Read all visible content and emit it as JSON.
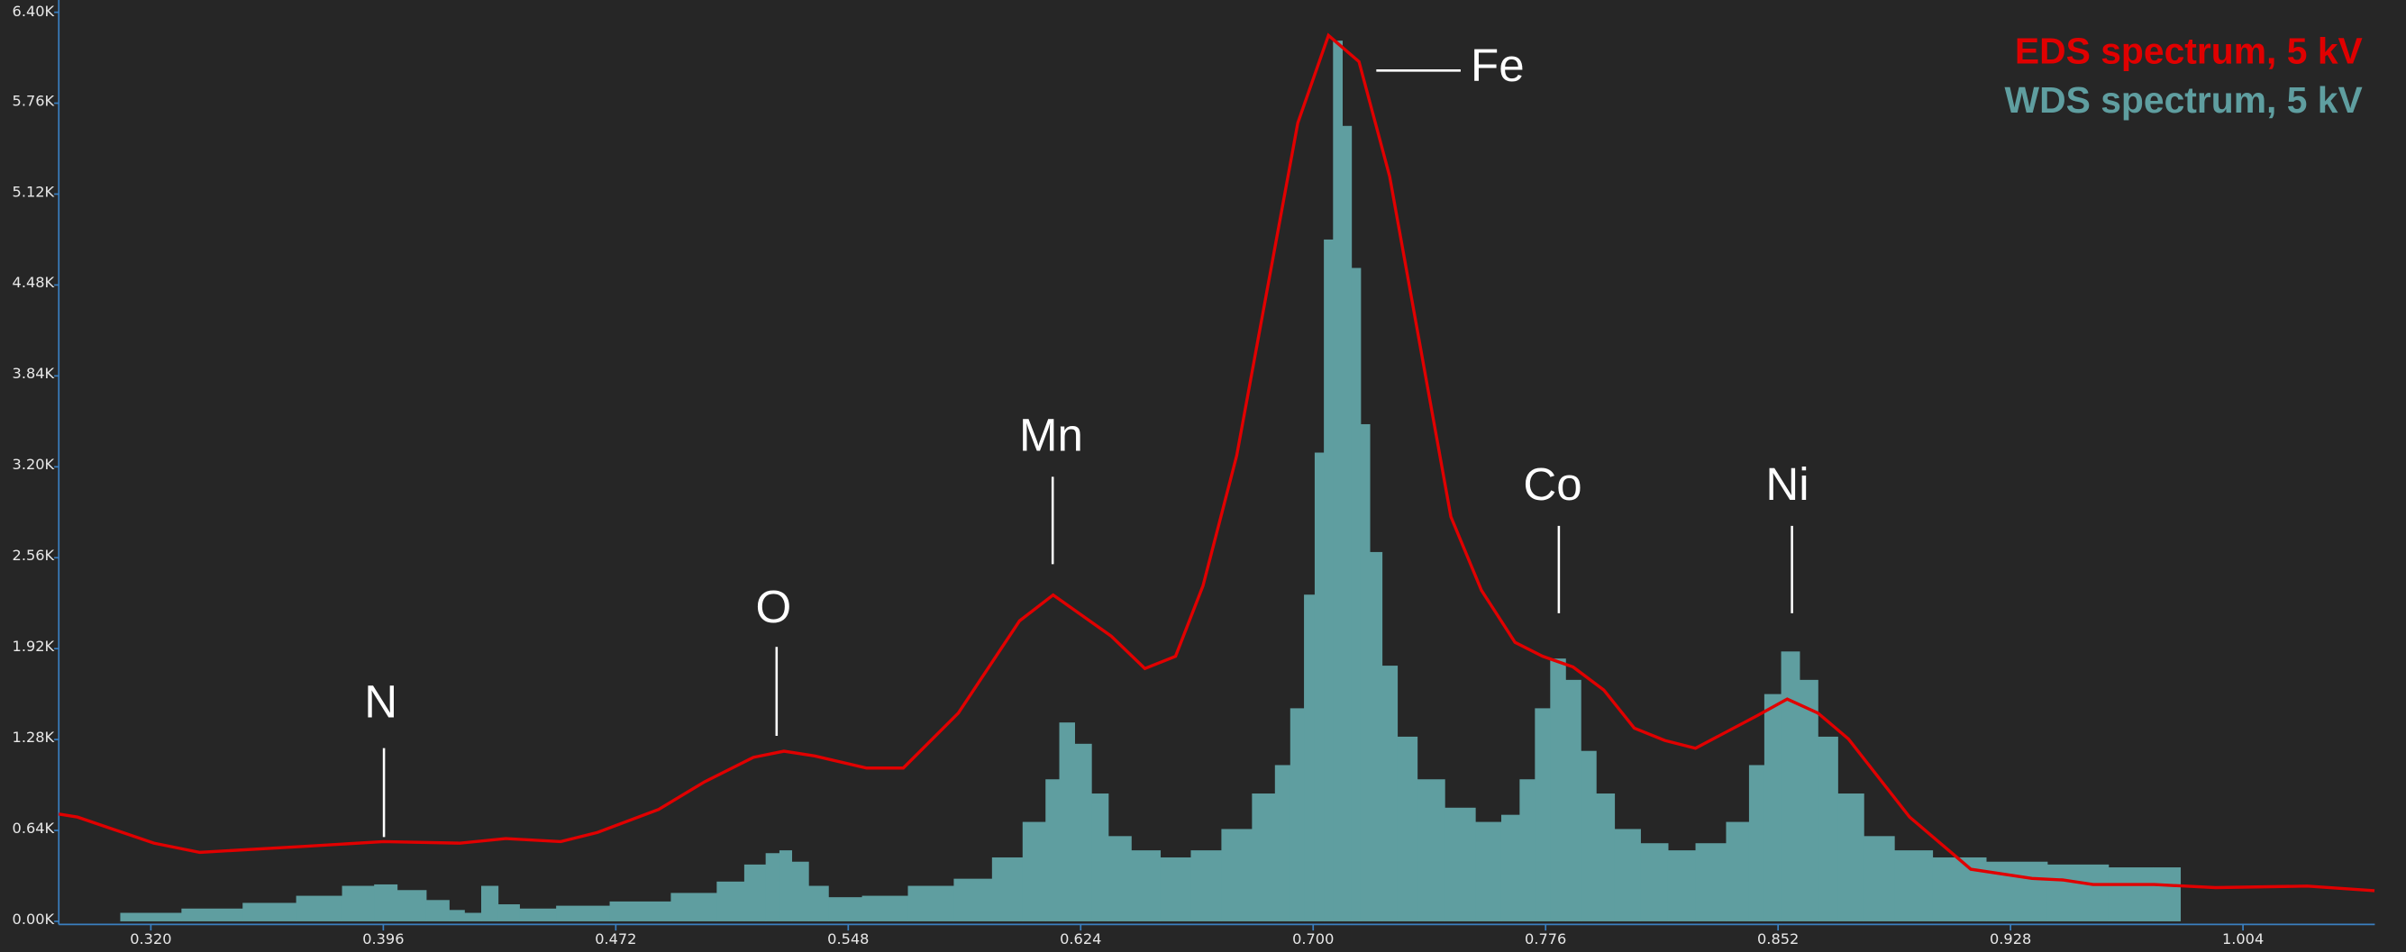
{
  "chart_data": {
    "type": "spectrum",
    "series": [
      {
        "name": "EDS spectrum, 5 kV",
        "color": "#e00000",
        "style": "line",
        "x": [
          0.2899,
          0.296,
          0.321,
          0.336,
          0.371,
          0.396,
          0.421,
          0.436,
          0.454,
          0.466,
          0.486,
          0.501,
          0.517,
          0.527,
          0.537,
          0.554,
          0.566,
          0.584,
          0.604,
          0.615,
          0.634,
          0.645,
          0.655,
          0.664,
          0.675,
          0.695,
          0.705,
          0.715,
          0.725,
          0.745,
          0.755,
          0.766,
          0.775,
          0.785,
          0.795,
          0.805,
          0.815,
          0.825,
          0.845,
          0.855,
          0.865,
          0.875,
          0.895,
          0.915,
          0.935,
          0.945,
          0.955,
          0.975,
          0.995,
          1.025,
          1.047
        ],
        "values": [
          755,
          734,
          550,
          486,
          529,
          561,
          550,
          583,
          561,
          626,
          788,
          982,
          1155,
          1198,
          1165,
          1079,
          1079,
          1467,
          2115,
          2298,
          2007,
          1780,
          1866,
          2363,
          3280,
          5621,
          6237,
          6053,
          5244,
          2849,
          2331,
          1964,
          1866,
          1791,
          1629,
          1360,
          1273,
          1219,
          1446,
          1565,
          1467,
          1284,
          734,
          367,
          302,
          291,
          259,
          259,
          237,
          248,
          216
        ]
      },
      {
        "name": "WDS spectrum, 5 kV",
        "color": "#5f9ea0",
        "style": "bars",
        "x": [
          0.32,
          0.34,
          0.36,
          0.375,
          0.39,
          0.396,
          0.405,
          0.415,
          0.42,
          0.425,
          0.431,
          0.436,
          0.445,
          0.46,
          0.48,
          0.5,
          0.51,
          0.518,
          0.524,
          0.527,
          0.532,
          0.538,
          0.545,
          0.56,
          0.575,
          0.59,
          0.6,
          0.61,
          0.615,
          0.619,
          0.625,
          0.63,
          0.636,
          0.645,
          0.655,
          0.665,
          0.675,
          0.685,
          0.69,
          0.695,
          0.699,
          0.702,
          0.705,
          0.708,
          0.711,
          0.714,
          0.717,
          0.72,
          0.725,
          0.73,
          0.738,
          0.748,
          0.758,
          0.765,
          0.77,
          0.775,
          0.78,
          0.785,
          0.79,
          0.795,
          0.802,
          0.812,
          0.82,
          0.83,
          0.84,
          0.845,
          0.85,
          0.856,
          0.862,
          0.868,
          0.875,
          0.885,
          0.895,
          0.91,
          0.93,
          0.95,
          0.97,
          0.979
        ],
        "values": [
          60,
          90,
          130,
          180,
          250,
          260,
          220,
          150,
          80,
          60,
          250,
          120,
          90,
          110,
          140,
          200,
          280,
          400,
          480,
          500,
          420,
          250,
          170,
          180,
          250,
          300,
          450,
          700,
          1000,
          1400,
          1250,
          900,
          600,
          500,
          450,
          500,
          650,
          900,
          1100,
          1500,
          2300,
          3300,
          4800,
          6200,
          5600,
          4600,
          3500,
          2600,
          1800,
          1300,
          1000,
          800,
          700,
          750,
          1000,
          1500,
          1850,
          1700,
          1200,
          900,
          650,
          550,
          500,
          550,
          700,
          1100,
          1600,
          1900,
          1700,
          1300,
          900,
          600,
          500,
          450,
          420,
          400,
          380,
          380
        ]
      }
    ],
    "annotations": [
      "N",
      "O",
      "Mn",
      "Fe",
      "Co",
      "Ni"
    ],
    "xlim": [
      0.2899,
      1.0471
    ],
    "xticks": [
      {
        "value": 0.32,
        "label": "0.320"
      },
      {
        "value": 0.396,
        "label": "0.396"
      },
      {
        "value": 0.472,
        "label": "0.472"
      },
      {
        "value": 0.548,
        "label": "0.548"
      },
      {
        "value": 0.624,
        "label": "0.624"
      },
      {
        "value": 0.7,
        "label": "0.700"
      },
      {
        "value": 0.776,
        "label": "0.776"
      },
      {
        "value": 0.852,
        "label": "0.852"
      },
      {
        "value": 0.928,
        "label": "0.928"
      },
      {
        "value": 1.004,
        "label": "1.004"
      }
    ],
    "ylim": [
      0,
      6400
    ],
    "yticks": [
      {
        "value": 0,
        "label": "0.00K"
      },
      {
        "value": 640,
        "label": "0.64K"
      },
      {
        "value": 1280,
        "label": "1.28K"
      },
      {
        "value": 1920,
        "label": "1.92K"
      },
      {
        "value": 2560,
        "label": "2.56K"
      },
      {
        "value": 3200,
        "label": "3.20K"
      },
      {
        "value": 3840,
        "label": "3.84K"
      },
      {
        "value": 4480,
        "label": "4.48K"
      },
      {
        "value": 5120,
        "label": "5.12K"
      },
      {
        "value": 5760,
        "label": "5.76K"
      },
      {
        "value": 6400,
        "label": "6.40K"
      }
    ],
    "legend": "top-right"
  }
}
